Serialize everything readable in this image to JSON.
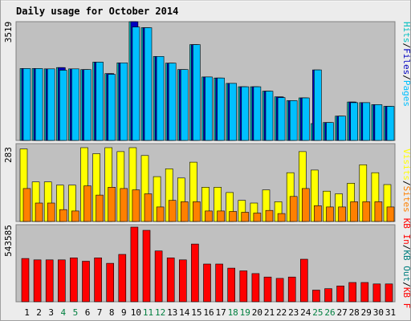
{
  "colors": {
    "frame_bg": "#ececec",
    "plot_bg": "#c0c0c0",
    "title": "#0000c0",
    "hits": "#00c0c0",
    "files": "#0000c0",
    "pages": "#00c0ff",
    "visits": "#ffff00",
    "sites": "#ff8000",
    "kb_in": "#ff0000",
    "kb_out": "#007f7f",
    "weekend_label": "#007f3f",
    "label_sep": "#000000"
  },
  "chart_data": {
    "type": "bar",
    "title": "Daily usage for October 2014",
    "days": [
      "1",
      "2",
      "3",
      "4",
      "5",
      "6",
      "7",
      "8",
      "9",
      "10",
      "11",
      "12",
      "13",
      "14",
      "15",
      "16",
      "17",
      "18",
      "19",
      "20",
      "21",
      "22",
      "23",
      "24",
      "25",
      "26",
      "27",
      "28",
      "29",
      "30",
      "31"
    ],
    "weekend_days": [
      "4",
      "5",
      "11",
      "12",
      "18",
      "19",
      "25",
      "26"
    ],
    "panels": [
      {
        "name": "requests",
        "axis_max_label": "3519",
        "ylim": [
          0,
          3519
        ],
        "labels": [
          {
            "text": "Hits",
            "color": "hits"
          },
          {
            "text": "/",
            "color": "label_sep"
          },
          {
            "text": "Files",
            "color": "files"
          },
          {
            "text": "/",
            "color": "label_sep"
          },
          {
            "text": "Pages",
            "color": "pages"
          }
        ],
        "series": [
          {
            "name": "Hits",
            "color": "hits",
            "values": [
              2130,
              2130,
              2120,
              2160,
              2120,
              2100,
              2320,
              1980,
              2300,
              3519,
              3340,
              2490,
              2290,
              2100,
              2840,
              1880,
              1850,
              1690,
              1590,
              1590,
              1460,
              1290,
              1180,
              1260,
              500,
              530,
              720,
              1140,
              1120,
              1060,
              1010
            ]
          },
          {
            "name": "Files",
            "color": "files",
            "values": [
              2130,
              2130,
              2120,
              2160,
              2120,
              2100,
              2320,
              1980,
              2300,
              3519,
              3340,
              2490,
              2290,
              2100,
              2840,
              1880,
              1850,
              1690,
              1590,
              1590,
              1460,
              1290,
              1180,
              1260,
              2090,
              530,
              720,
              1140,
              1120,
              1060,
              1010
            ]
          },
          {
            "name": "Pages",
            "color": "pages",
            "values": [
              2130,
              2130,
              2120,
              2080,
              2120,
              2100,
              2320,
              1960,
              2300,
              3360,
              3340,
              2490,
              2290,
              2100,
              2840,
              1880,
              1850,
              1690,
              1590,
              1590,
              1460,
              1270,
              1180,
              1260,
              2090,
              530,
              720,
              1120,
              1120,
              1060,
              1010
            ]
          }
        ]
      },
      {
        "name": "visitors",
        "axis_max_label": "283",
        "ylim": [
          0,
          283
        ],
        "labels": [
          {
            "text": "Visits",
            "color": "visits"
          },
          {
            "text": "/",
            "color": "label_sep"
          },
          {
            "text": "Sites",
            "color": "sites"
          }
        ],
        "series": [
          {
            "name": "Visits",
            "color": "visits",
            "values": [
              275,
              150,
              150,
              138,
              138,
              280,
              257,
              280,
              265,
              280,
              250,
              170,
              200,
              165,
              225,
              130,
              130,
              110,
              80,
              70,
              120,
              75,
              185,
              265,
              195,
              115,
              105,
              145,
              215,
              185,
              140
            ]
          },
          {
            "name": "Sites",
            "color": "sites",
            "values": [
              125,
              70,
              70,
              45,
              40,
              135,
              100,
              130,
              125,
              120,
              105,
              55,
              80,
              75,
              75,
              40,
              40,
              38,
              35,
              32,
              42,
              30,
              95,
              125,
              60,
              55,
              55,
              75,
              75,
              75,
              55
            ]
          }
        ]
      },
      {
        "name": "traffic",
        "axis_max_label": "543585",
        "ylim": [
          0,
          543585
        ],
        "labels": [
          {
            "text": "KB In",
            "color": "kb_in"
          },
          {
            "text": "/",
            "color": "label_sep"
          },
          {
            "text": "KB Out",
            "color": "kb_out"
          },
          {
            "text": "/",
            "color": "label_sep"
          },
          {
            "text": "KB F",
            "color": "kb_in"
          }
        ],
        "series": [
          {
            "name": "KB F",
            "color": "kb_in",
            "values": [
              315000,
              305000,
              305000,
              305000,
              320000,
              295000,
              320000,
              280000,
              345000,
              543585,
              520000,
              370000,
              320000,
              305000,
              420000,
              275000,
              275000,
              245000,
              225000,
              205000,
              180000,
              170000,
              180000,
              310000,
              85000,
              95000,
              115000,
              140000,
              140000,
              130000,
              130000
            ]
          }
        ]
      }
    ]
  }
}
